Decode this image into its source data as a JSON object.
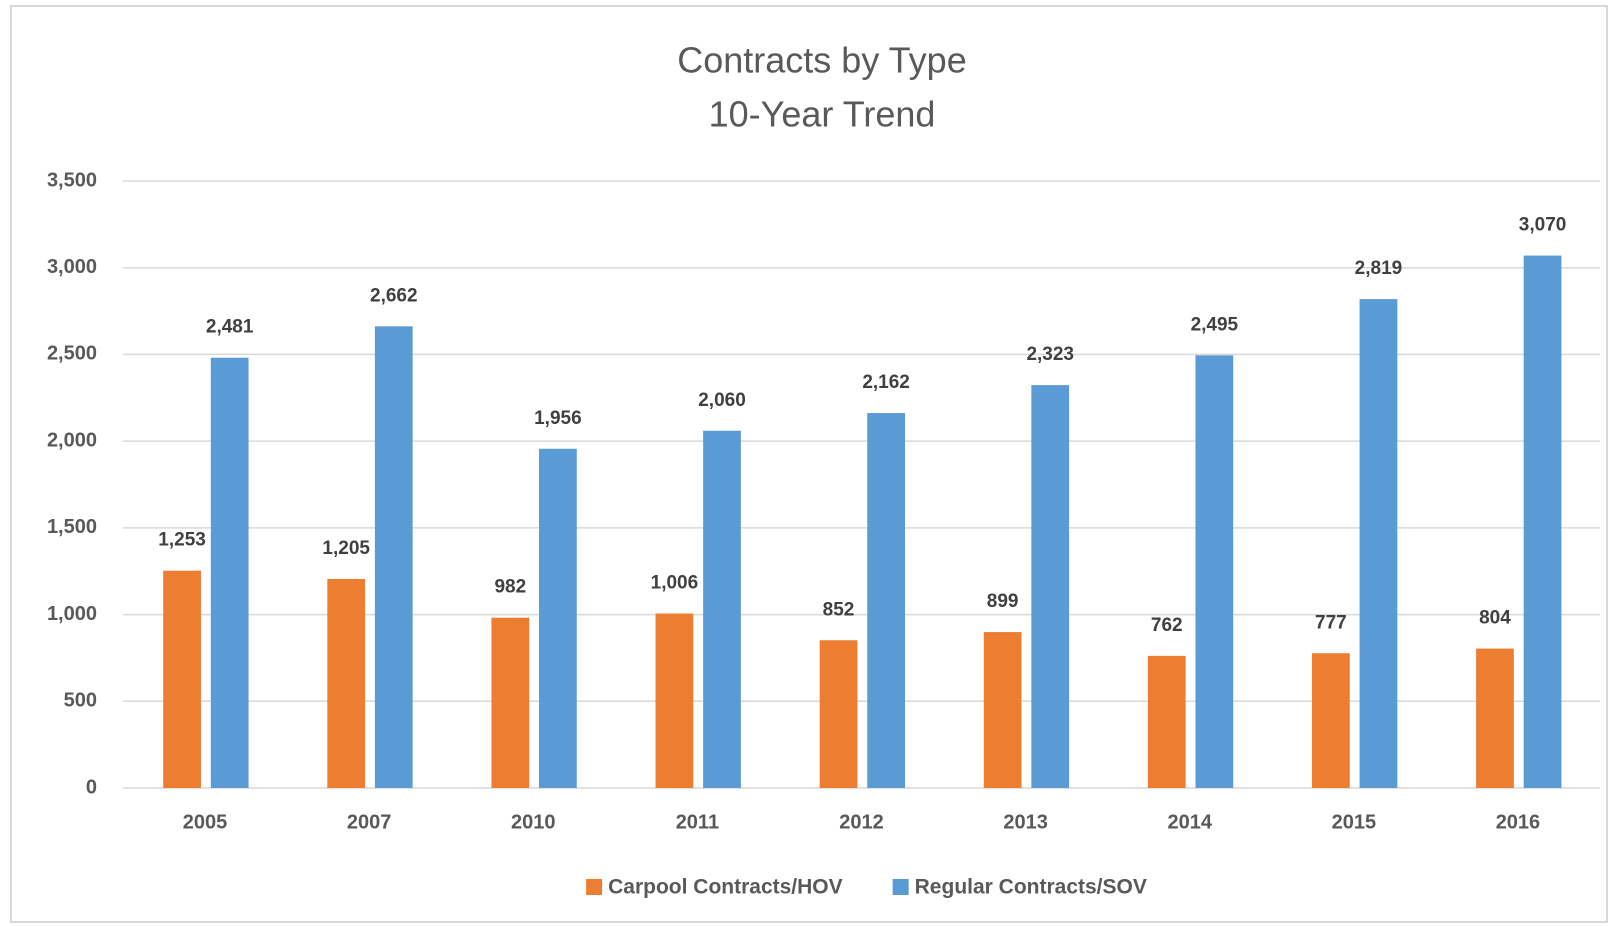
{
  "chart_data": {
    "type": "bar",
    "title": "Contracts by Type",
    "subtitle": "10-Year Trend",
    "categories": [
      "2005",
      "2007",
      "2010",
      "2011",
      "2012",
      "2013",
      "2014",
      "2015",
      "2016"
    ],
    "series": [
      {
        "name": "Carpool Contracts/HOV",
        "color": "#ed7d31",
        "values": [
          1253,
          1205,
          982,
          1006,
          852,
          899,
          762,
          777,
          804
        ],
        "value_labels": [
          "1,253",
          "1,205",
          "982",
          "1,006",
          "852",
          "899",
          "762",
          "777",
          "804"
        ]
      },
      {
        "name": "Regular Contracts/SOV",
        "color": "#5b9bd5",
        "values": [
          2481,
          2662,
          1956,
          2060,
          2162,
          2323,
          2495,
          2819,
          3070
        ],
        "value_labels": [
          "2,481",
          "2,662",
          "1,956",
          "2,060",
          "2,162",
          "2,323",
          "2,495",
          "2,819",
          "3,070"
        ]
      }
    ],
    "ylim": [
      0,
      3500
    ],
    "yticks": [
      0,
      500,
      {
        "value": 1000,
        "label": "1,000"
      },
      {
        "value": 1500,
        "label": "1,500"
      },
      {
        "value": 2000,
        "label": "2,000"
      },
      {
        "value": 2500,
        "label": "2,500"
      },
      {
        "value": 3000,
        "label": "3,000"
      },
      {
        "value": 3500,
        "label": "3,500"
      }
    ],
    "grid": true,
    "legend": "bottom"
  }
}
